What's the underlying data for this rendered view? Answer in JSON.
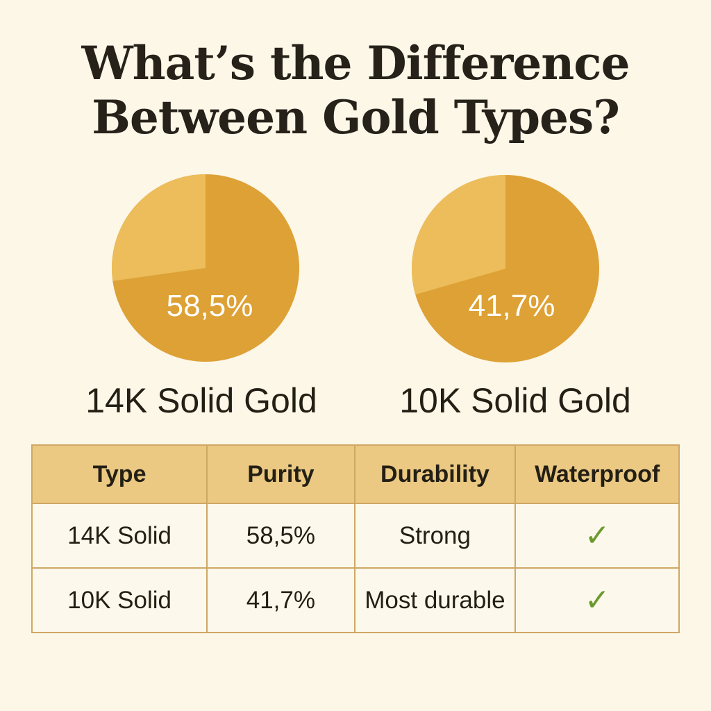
{
  "title": {
    "line1": "What’s the Difference",
    "line2": "Between Gold Types?"
  },
  "chart_data": {
    "type": "pie",
    "charts": [
      {
        "label": "58,5%",
        "value": 58.5,
        "caption": "14K Solid Gold"
      },
      {
        "label": "41,7%",
        "value": 41.7,
        "caption": "10K Solid Gold"
      }
    ],
    "colors": {
      "main_slice": "#dda136",
      "minor_slice": "#ecbd5a"
    }
  },
  "table": {
    "headers": [
      "Type",
      "Purity",
      "Durability",
      "Waterproof"
    ],
    "rows": [
      {
        "type": "14K Solid",
        "purity": "58,5%",
        "durability": "Strong",
        "waterproof": "check-icon"
      },
      {
        "type": "10K Solid",
        "purity": "41,7%",
        "durability": "Most durable",
        "waterproof": "check-icon"
      }
    ],
    "colors": {
      "header_bg": "#ebc983",
      "border": "#cfa765",
      "check": "#6a9a2e"
    }
  }
}
